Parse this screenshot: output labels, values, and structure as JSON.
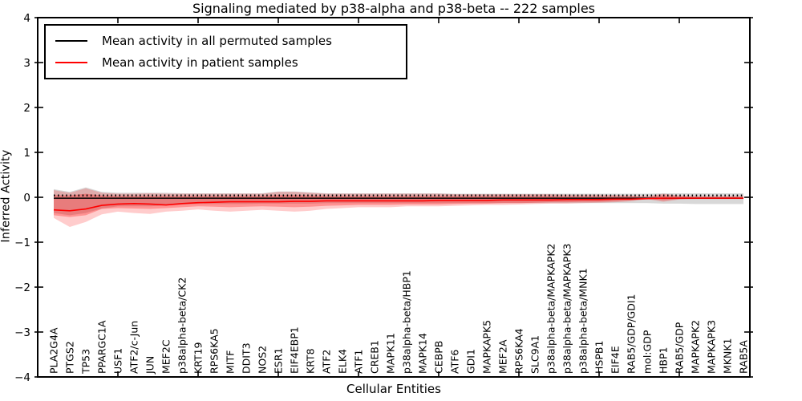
{
  "chart_data": {
    "type": "line",
    "title": "Signaling mediated by p38-alpha and p38-beta -- 222 samples",
    "xlabel": "Cellular Entities",
    "ylabel": "Inferred Activity",
    "ylim": [
      -4,
      4
    ],
    "ytick_values": [
      4,
      3,
      2,
      1,
      0,
      -1,
      -2,
      -3,
      -4
    ],
    "ytick_labels": [
      "4",
      "3",
      "2",
      "1",
      "0",
      "−1",
      "−2",
      "−3",
      "−4"
    ],
    "x_major_tick_indices": [
      4,
      9,
      14,
      19,
      24,
      29,
      34,
      39
    ],
    "grid": false,
    "legend_position": "upper left",
    "categories": [
      "PLA2G4A",
      "PTGS2",
      "TP53",
      "PPARGC1A",
      "USF1",
      "ATF2/c-Jun",
      "JUN",
      "MEF2C",
      "p38alpha-beta/CK2",
      "KRT19",
      "RPS6KA5",
      "MITF",
      "DDIT3",
      "NOS2",
      "ESR1",
      "EIF4EBP1",
      "KRT8",
      "ATF2",
      "ELK4",
      "ATF1",
      "CREB1",
      "MAPK11",
      "p38alpha-beta/HBP1",
      "MAPK14",
      "CEBPB",
      "ATF6",
      "GDI1",
      "MAPKAPK5",
      "MEF2A",
      "RPS6KA4",
      "SLC9A1",
      "p38alpha-beta/MAPKAPK2",
      "p38alpha-beta/MAPKAPK3",
      "p38alpha-beta/MNK1",
      "HSPB1",
      "EIF4E",
      "RAB5/GDP/GDI1",
      "mol:GDP",
      "HBP1",
      "RAB5/GDP",
      "MAPKAPK2",
      "MAPKAPK3",
      "MKNK1",
      "RAB5A"
    ],
    "series": [
      {
        "name": "Mean activity in all permuted samples",
        "color": "#000000",
        "values": [
          -0.02,
          -0.02,
          -0.02,
          -0.02,
          -0.02,
          -0.02,
          -0.02,
          -0.02,
          -0.02,
          -0.02,
          -0.02,
          -0.02,
          -0.02,
          -0.02,
          -0.02,
          -0.02,
          -0.02,
          -0.02,
          -0.02,
          -0.02,
          -0.02,
          -0.02,
          -0.02,
          -0.02,
          -0.02,
          -0.02,
          -0.02,
          -0.02,
          -0.02,
          -0.02,
          -0.02,
          -0.02,
          -0.02,
          -0.02,
          -0.02,
          -0.02,
          -0.02,
          -0.02,
          -0.02,
          -0.02,
          -0.02,
          -0.02,
          -0.02,
          -0.02
        ]
      },
      {
        "name": "Mean activity in patient samples",
        "color": "#ff0000",
        "values": [
          -0.28,
          -0.3,
          -0.26,
          -0.18,
          -0.15,
          -0.14,
          -0.15,
          -0.17,
          -0.14,
          -0.12,
          -0.11,
          -0.1,
          -0.1,
          -0.1,
          -0.1,
          -0.09,
          -0.09,
          -0.08,
          -0.08,
          -0.08,
          -0.08,
          -0.08,
          -0.08,
          -0.08,
          -0.07,
          -0.07,
          -0.07,
          -0.07,
          -0.06,
          -0.06,
          -0.06,
          -0.06,
          -0.05,
          -0.05,
          -0.05,
          -0.04,
          -0.04,
          -0.03,
          -0.02,
          -0.02,
          -0.02,
          -0.02,
          -0.02,
          -0.02
        ]
      }
    ],
    "bands": [
      {
        "name": "permuted-range-band",
        "fill": "rgba(125,125,125,0.30)",
        "upper": [
          0.18,
          0.12,
          0.22,
          0.12,
          0.1,
          0.1,
          0.1,
          0.1,
          0.09,
          0.09,
          0.09,
          0.09,
          0.09,
          0.09,
          0.13,
          0.13,
          0.11,
          0.09,
          0.09,
          0.09,
          0.09,
          0.09,
          0.09,
          0.09,
          0.09,
          0.08,
          0.08,
          0.08,
          0.08,
          0.08,
          0.08,
          0.08,
          0.08,
          0.08,
          0.08,
          0.08,
          0.08,
          0.08,
          0.09,
          0.09,
          0.09,
          0.09,
          0.09,
          0.09
        ],
        "lower": [
          -0.35,
          -0.4,
          -0.35,
          -0.25,
          -0.2,
          -0.2,
          -0.2,
          -0.18,
          -0.16,
          -0.15,
          -0.15,
          -0.15,
          -0.15,
          -0.14,
          -0.14,
          -0.14,
          -0.14,
          -0.13,
          -0.13,
          -0.13,
          -0.13,
          -0.13,
          -0.13,
          -0.13,
          -0.13,
          -0.13,
          -0.13,
          -0.13,
          -0.13,
          -0.13,
          -0.13,
          -0.13,
          -0.13,
          -0.13,
          -0.13,
          -0.13,
          -0.13,
          -0.13,
          -0.14,
          -0.14,
          -0.15,
          -0.15,
          -0.15,
          -0.15
        ]
      },
      {
        "name": "patient-range-outer-band",
        "fill": "rgba(255,0,0,0.20)",
        "upper": [
          0.16,
          0.1,
          0.2,
          0.1,
          0.08,
          0.08,
          0.09,
          0.08,
          0.08,
          0.08,
          0.08,
          0.08,
          0.08,
          0.08,
          0.12,
          0.12,
          0.1,
          0.08,
          0.08,
          0.08,
          0.08,
          0.08,
          0.08,
          0.08,
          0.08,
          0.07,
          0.07,
          0.07,
          0.07,
          0.07,
          0.07,
          0.07,
          0.06,
          0.06,
          0.06,
          0.05,
          0.04,
          0.02,
          0.08,
          0.04,
          0.03,
          0.03,
          0.03,
          0.03
        ],
        "lower": [
          -0.46,
          -0.66,
          -0.55,
          -0.38,
          -0.32,
          -0.35,
          -0.37,
          -0.32,
          -0.3,
          -0.27,
          -0.3,
          -0.32,
          -0.3,
          -0.28,
          -0.3,
          -0.32,
          -0.3,
          -0.26,
          -0.24,
          -0.22,
          -0.22,
          -0.22,
          -0.2,
          -0.2,
          -0.2,
          -0.19,
          -0.18,
          -0.17,
          -0.17,
          -0.16,
          -0.15,
          -0.14,
          -0.14,
          -0.13,
          -0.12,
          -0.11,
          -0.09,
          -0.04,
          -0.1,
          -0.05,
          -0.04,
          -0.04,
          -0.04,
          -0.04
        ]
      },
      {
        "name": "patient-range-inner-band",
        "fill": "rgba(255,0,0,0.28)",
        "upper": [
          0.05,
          0.04,
          0.08,
          0.04,
          0.03,
          0.03,
          0.03,
          0.03,
          0.03,
          0.03,
          0.03,
          0.03,
          0.03,
          0.03,
          0.05,
          0.05,
          0.04,
          0.03,
          0.03,
          0.03,
          0.03,
          0.03,
          0.03,
          0.03,
          0.03,
          0.03,
          0.03,
          0.03,
          0.03,
          0.03,
          0.03,
          0.03,
          0.02,
          0.02,
          0.02,
          0.02,
          0.02,
          0.01,
          0.04,
          0.02,
          0.01,
          0.01,
          0.01,
          0.01
        ],
        "lower": [
          -0.4,
          -0.44,
          -0.4,
          -0.26,
          -0.24,
          -0.25,
          -0.26,
          -0.24,
          -0.22,
          -0.2,
          -0.21,
          -0.22,
          -0.21,
          -0.2,
          -0.21,
          -0.22,
          -0.21,
          -0.19,
          -0.18,
          -0.17,
          -0.17,
          -0.17,
          -0.16,
          -0.16,
          -0.16,
          -0.15,
          -0.14,
          -0.14,
          -0.13,
          -0.13,
          -0.12,
          -0.11,
          -0.11,
          -0.1,
          -0.1,
          -0.09,
          -0.07,
          -0.03,
          -0.07,
          -0.04,
          -0.03,
          -0.03,
          -0.03,
          -0.03
        ]
      }
    ],
    "zero_line": {
      "value": 0.04,
      "style": "dotted",
      "color": "#000000"
    }
  },
  "legend": {
    "items": [
      {
        "label": "Mean activity in all permuted samples",
        "color": "#000000"
      },
      {
        "label": "Mean activity in patient samples",
        "color": "#ff0000"
      }
    ]
  },
  "colors": {
    "background": "#ffffff",
    "axis": "#000000",
    "patient": "#ff0000"
  }
}
